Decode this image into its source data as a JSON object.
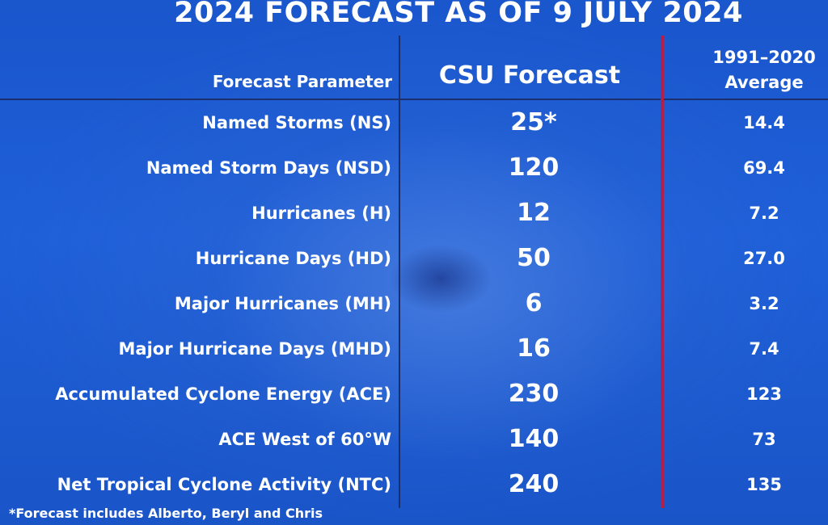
{
  "title": "2024 FORECAST AS OF 9 JULY 2024",
  "headers": {
    "parameter": "Forecast Parameter",
    "csu": "CSU Forecast",
    "avg_line1": "1991–2020",
    "avg_line2": "Average"
  },
  "rows": [
    {
      "parameter": "Named Storms (NS)",
      "csu": "25*",
      "avg": "14.4"
    },
    {
      "parameter": "Named Storm Days (NSD)",
      "csu": "120",
      "avg": "69.4"
    },
    {
      "parameter": "Hurricanes (H)",
      "csu": "12",
      "avg": "7.2"
    },
    {
      "parameter": "Hurricane Days (HD)",
      "csu": "50",
      "avg": "27.0"
    },
    {
      "parameter": "Major Hurricanes (MH)",
      "csu": "6",
      "avg": "3.2"
    },
    {
      "parameter": "Major Hurricane Days (MHD)",
      "csu": "16",
      "avg": "7.4"
    },
    {
      "parameter": "Accumulated Cyclone Energy (ACE)",
      "csu": "230",
      "avg": "123"
    },
    {
      "parameter": "ACE West of 60°W",
      "csu": "140",
      "avg": "73"
    },
    {
      "parameter": "Net Tropical Cyclone Activity (NTC)",
      "csu": "240",
      "avg": "135"
    }
  ],
  "footnote": "*Forecast includes Alberto, Beryl and Chris"
}
